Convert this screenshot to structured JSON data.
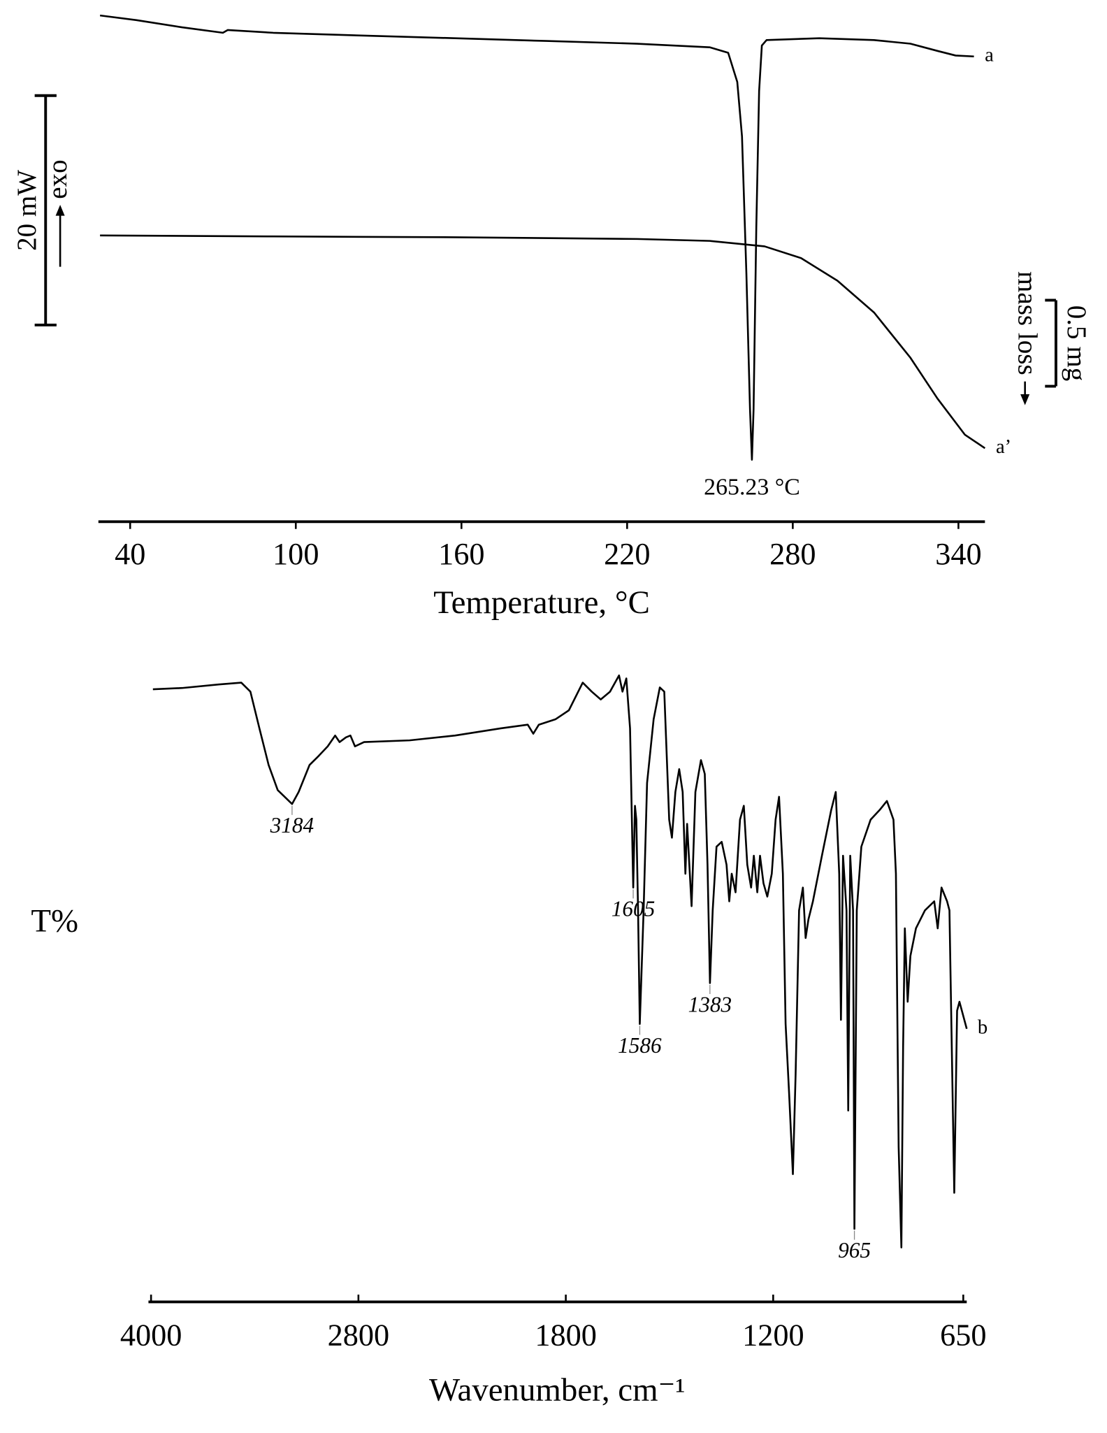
{
  "chart_data": [
    {
      "type": "line",
      "xlabel": "Temperature, °C",
      "xlim": [
        28.5,
        349.6
      ],
      "xticks": [
        40,
        100,
        160,
        220,
        280,
        340
      ],
      "ylim": [
        -40,
        2
      ],
      "y2lim": [
        -2.6,
        0.2
      ],
      "series": [
        {
          "name": "a",
          "color": "#000000",
          "x": [
            29.1,
            42.3,
            58.8,
            73.6,
            75.3,
            91.8,
            124.7,
            157.7,
            190.7,
            223.6,
            250.0,
            256.6,
            259.9,
            261.6,
            263.2,
            264.5,
            265.2,
            265.8,
            266.8,
            267.8,
            268.8,
            270.5,
            289.6,
            309.4,
            322.6,
            332.4,
            339.0,
            345.6
          ],
          "values": [
            0.65,
            0.25,
            -0.38,
            -0.86,
            -0.62,
            -0.86,
            -1.1,
            -1.33,
            -1.57,
            -1.81,
            -2.13,
            -2.6,
            -5.14,
            -9.9,
            -21.81,
            -33.71,
            -38.08,
            -33.71,
            -17.84,
            -5.94,
            -1.97,
            -1.49,
            -1.33,
            -1.49,
            -1.81,
            -2.44,
            -2.84,
            -2.92
          ]
        },
        {
          "name": "a’",
          "color": "#000000",
          "axis": "y2",
          "x": [
            29.1,
            91.8,
            157.7,
            223.6,
            250.0,
            269.8,
            283.0,
            296.2,
            309.4,
            322.6,
            332.4,
            342.3,
            349.6
          ],
          "values": [
            -1.168,
            -1.174,
            -1.179,
            -1.189,
            -1.2,
            -1.232,
            -1.3,
            -1.432,
            -1.616,
            -1.879,
            -2.116,
            -2.326,
            -2.405
          ]
        }
      ],
      "annotations": [
        {
          "value": 265.23,
          "label": "265.23 °C"
        }
      ],
      "scale_bars": [
        {
          "axis": "y",
          "value": 20,
          "label": "20 mW",
          "direction_label": "exo"
        },
        {
          "axis": "y2",
          "value": 0.5,
          "label": "0.5 mg",
          "direction_label": "mass loss"
        }
      ]
    },
    {
      "type": "line",
      "xlabel": "Wavenumber, cm⁻¹",
      "ylabel": "T%",
      "xlim": [
        4015,
        640
      ],
      "xscale": {
        "type": "split",
        "break": 2000,
        "ratio": 2
      },
      "xticks": [
        4000,
        2800,
        1800,
        1200,
        650
      ],
      "ylim": [
        0,
        100
      ],
      "series": [
        {
          "name": "b",
          "color": "#000000",
          "x": [
            3989,
            3820,
            3610,
            3478,
            3425,
            3373,
            3320,
            3267,
            3184,
            3146,
            3083,
            3030,
            2978,
            2935,
            2909,
            2872,
            2846,
            2820,
            2767,
            2504,
            2240,
            1988,
            1910,
            1894,
            1878,
            1830,
            1791,
            1751,
            1725,
            1699,
            1672,
            1646,
            1636,
            1625,
            1614,
            1605,
            1600,
            1596,
            1591,
            1586,
            1575,
            1565,
            1546,
            1528,
            1515,
            1501,
            1493,
            1483,
            1472,
            1462,
            1454,
            1449,
            1444,
            1436,
            1425,
            1409,
            1398,
            1390,
            1383,
            1375,
            1364,
            1349,
            1335,
            1327,
            1320,
            1309,
            1296,
            1285,
            1275,
            1264,
            1256,
            1246,
            1238,
            1228,
            1217,
            1204,
            1193,
            1183,
            1172,
            1164,
            1154,
            1143,
            1135,
            1125,
            1114,
            1106,
            1098,
            1085,
            1059,
            1032,
            1019,
            1009,
            1004,
            998,
            988,
            983,
            977,
            969,
            965,
            958,
            945,
            918,
            892,
            871,
            852,
            845,
            837,
            829,
            824,
            819,
            811,
            803,
            787,
            761,
            734,
            724,
            713,
            697,
            690,
            676,
            668,
            661,
            640
          ],
          "values": [
            95.9,
            96.1,
            96.7,
            97.0,
            95.5,
            89.4,
            83.3,
            79.1,
            76.8,
            78.8,
            83.3,
            84.8,
            86.4,
            88.2,
            87.1,
            87.9,
            88.2,
            86.4,
            87.1,
            87.4,
            88.2,
            89.4,
            90.0,
            88.5,
            90.0,
            90.9,
            92.4,
            97.0,
            95.5,
            94.2,
            95.5,
            98.2,
            95.5,
            97.7,
            89.4,
            62.9,
            76.5,
            74.2,
            59.1,
            40.2,
            59.1,
            80.3,
            90.9,
            96.2,
            95.5,
            74.2,
            71.2,
            78.8,
            82.6,
            78.8,
            65.2,
            73.5,
            68.2,
            59.8,
            78.8,
            84.1,
            81.8,
            66.7,
            47.0,
            59.1,
            69.7,
            70.5,
            66.7,
            60.6,
            65.2,
            62.1,
            74.2,
            76.5,
            66.7,
            62.9,
            68.2,
            62.1,
            68.2,
            63.6,
            61.4,
            65.2,
            74.2,
            78.0,
            65.2,
            40.2,
            28.8,
            15.2,
            31.8,
            59.1,
            62.9,
            54.5,
            57.6,
            60.6,
            68.2,
            75.8,
            78.8,
            65.2,
            40.9,
            68.2,
            59.1,
            25.8,
            68.2,
            59.1,
            6.1,
            59.1,
            69.7,
            74.2,
            75.8,
            77.3,
            74.2,
            65.2,
            19.7,
            3.0,
            36.4,
            56.1,
            43.9,
            51.5,
            56.1,
            59.1,
            60.6,
            56.1,
            62.9,
            60.6,
            59.1,
            12.1,
            42.4,
            43.9,
            39.4
          ]
        }
      ],
      "peak_labels": [
        3184,
        1605,
        1586,
        1383,
        965
      ]
    }
  ]
}
